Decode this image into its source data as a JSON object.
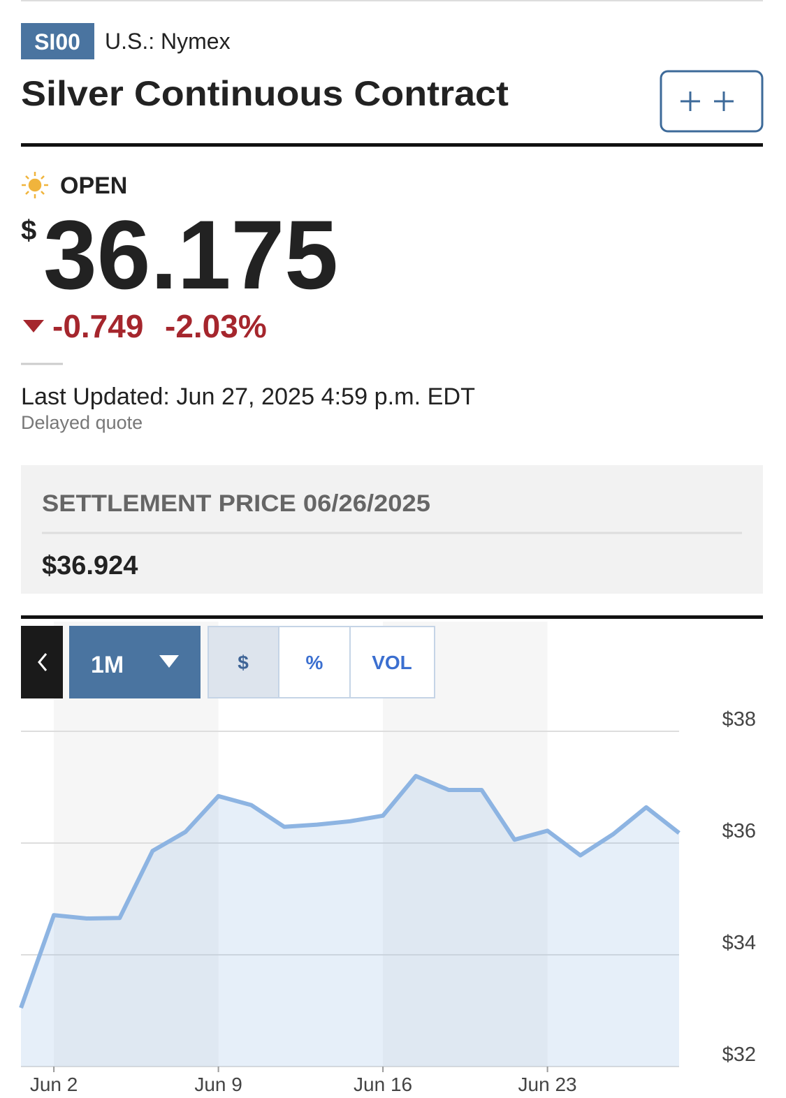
{
  "header": {
    "symbol": "SI00",
    "exchange": "U.S.: Nymex",
    "title": "Silver Continuous Contract"
  },
  "quote": {
    "status": "OPEN",
    "currency": "$",
    "price": "36.175",
    "change": "-0.749",
    "change_percent": "-2.03%",
    "last_updated": "Last Updated: Jun 27, 2025 4:59 p.m. EDT",
    "note": "Delayed quote"
  },
  "settlement": {
    "label": "SETTLEMENT PRICE 06/26/2025",
    "value": "$36.924"
  },
  "controls": {
    "range": "1M",
    "modes": [
      "$",
      "%",
      "VOL"
    ]
  },
  "chart_data": {
    "type": "area",
    "categories": [
      null,
      "Jun 2",
      null,
      null,
      null,
      null,
      "Jun 9",
      null,
      null,
      null,
      null,
      "Jun 16",
      null,
      null,
      null,
      null,
      "Jun 23",
      null,
      null,
      null,
      null
    ],
    "values": [
      33.05,
      34.71,
      34.65,
      34.66,
      35.86,
      36.2,
      36.84,
      36.68,
      36.29,
      36.33,
      36.39,
      36.49,
      37.2,
      36.95,
      36.95,
      36.06,
      36.22,
      35.78,
      36.16,
      36.64,
      36.18
    ],
    "color": "#8db4e2",
    "ylim": [
      32,
      38
    ],
    "yticks": [
      {
        "value": 32,
        "label": "$32"
      },
      {
        "value": 34,
        "label": "$34"
      },
      {
        "value": 36,
        "label": "$36"
      },
      {
        "value": 38,
        "label": "$38"
      }
    ],
    "grid": true
  }
}
